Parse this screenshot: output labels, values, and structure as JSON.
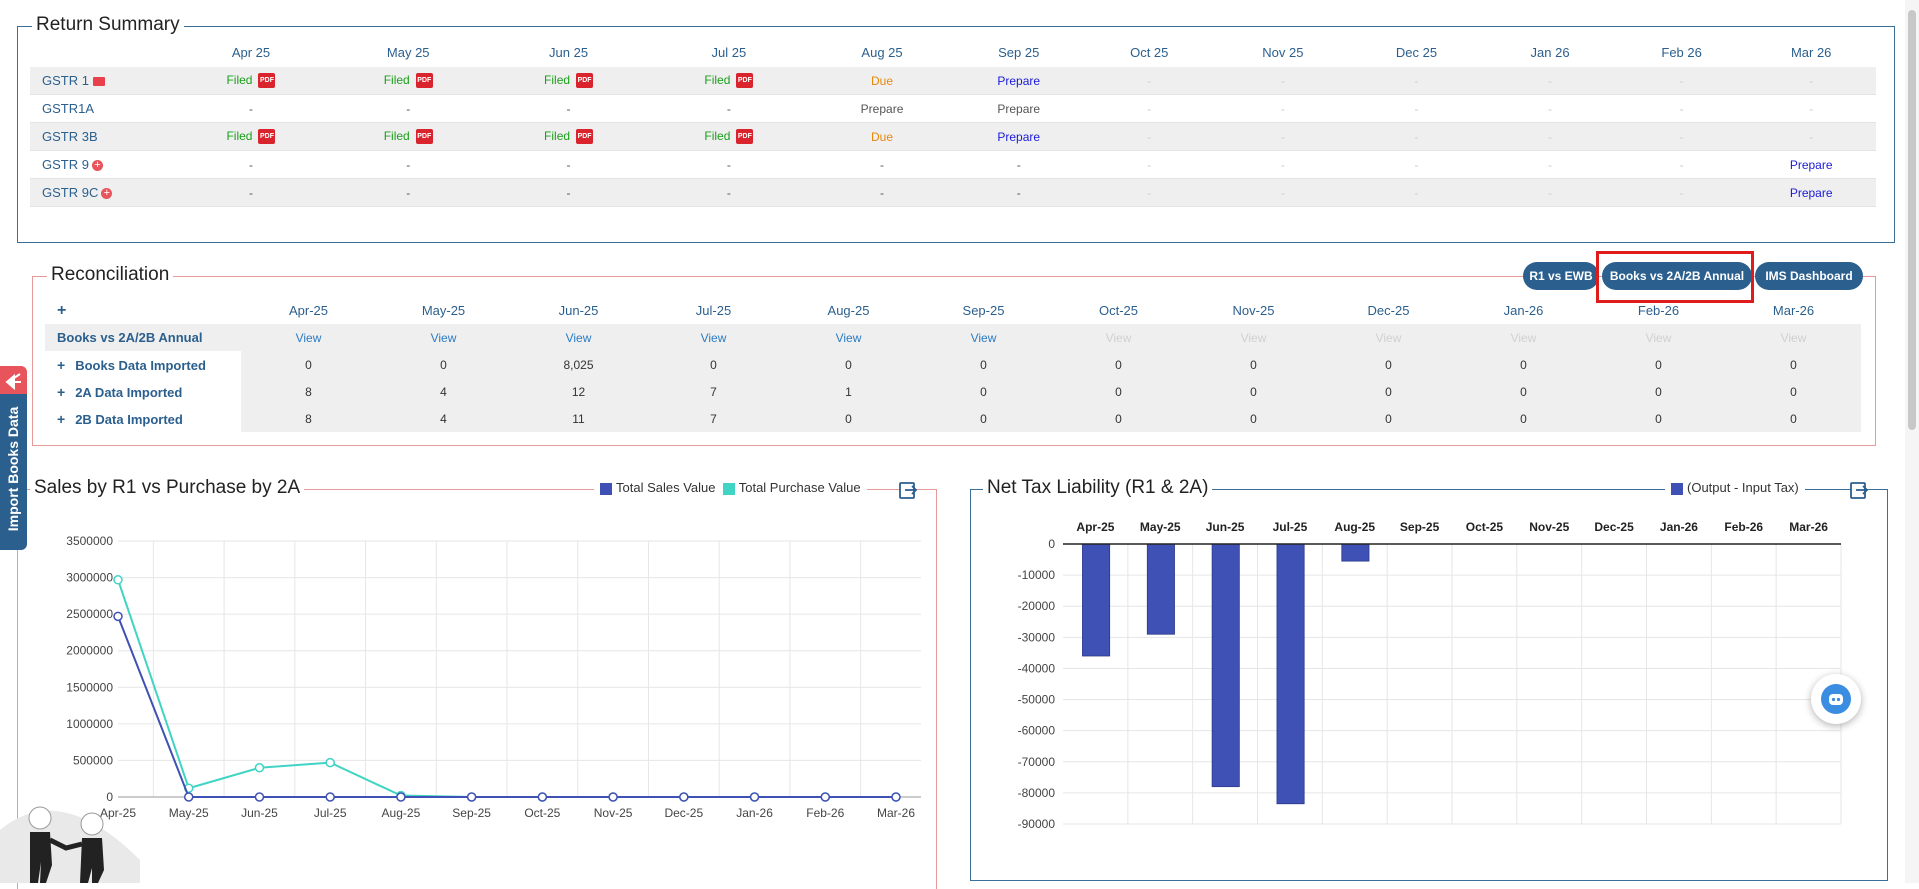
{
  "return_summary": {
    "title": "Return Summary",
    "months": [
      "Apr 25",
      "May 25",
      "Jun 25",
      "Jul 25",
      "Aug 25",
      "Sep 25",
      "Oct 25",
      "Nov 25",
      "Dec 25",
      "Jan 26",
      "Feb 26",
      "Mar 26"
    ],
    "rows": [
      {
        "label": "GSTR 1",
        "icon": "mail-icon",
        "cells": [
          "Filed",
          "Filed",
          "Filed",
          "Filed",
          "Due",
          "Prepare",
          "-",
          "-",
          "-",
          "-",
          "-",
          "-"
        ]
      },
      {
        "label": "GSTR1A",
        "icon": "",
        "cells": [
          "-",
          "-",
          "-",
          "-",
          "Prepare",
          "Prepare",
          "-",
          "-",
          "-",
          "-",
          "-",
          "-"
        ]
      },
      {
        "label": "GSTR 3B",
        "icon": "",
        "cells": [
          "Filed",
          "Filed",
          "Filed",
          "Filed",
          "Due",
          "Prepare",
          "-",
          "-",
          "-",
          "-",
          "-",
          "-"
        ]
      },
      {
        "label": "GSTR 9",
        "icon": "plus-circle-icon",
        "cells": [
          "-",
          "-",
          "-",
          "-",
          "-",
          "-",
          "-",
          "-",
          "-",
          "-",
          "-",
          "Prepare"
        ]
      },
      {
        "label": "GSTR 9C",
        "icon": "plus-circle-icon",
        "cells": [
          "-",
          "-",
          "-",
          "-",
          "-",
          "-",
          "-",
          "-",
          "-",
          "-",
          "-",
          "Prepare"
        ]
      }
    ]
  },
  "reconciliation": {
    "title": "Reconciliation",
    "buttons": [
      "R1 vs EWB",
      "Books vs 2A/2B Annual",
      "IMS Dashboard"
    ],
    "expand_symbol": "+",
    "months": [
      "Apr-25",
      "May-25",
      "Jun-25",
      "Jul-25",
      "Aug-25",
      "Sep-25",
      "Oct-25",
      "Nov-25",
      "Dec-25",
      "Jan-26",
      "Feb-26",
      "Mar-26"
    ],
    "view_row": {
      "label": "Books vs 2A/2B Annual",
      "link_text": "View",
      "active_count": 6
    },
    "rows": [
      {
        "label": "Books Data Imported",
        "values": [
          "0",
          "0",
          "8,025",
          "0",
          "0",
          "0",
          "0",
          "0",
          "0",
          "0",
          "0",
          "0"
        ]
      },
      {
        "label": "2A Data Imported",
        "values": [
          "8",
          "4",
          "12",
          "7",
          "1",
          "0",
          "0",
          "0",
          "0",
          "0",
          "0",
          "0"
        ]
      },
      {
        "label": "2B Data Imported",
        "values": [
          "8",
          "4",
          "11",
          "7",
          "0",
          "0",
          "0",
          "0",
          "0",
          "0",
          "0",
          "0"
        ]
      }
    ]
  },
  "side_tab": {
    "label": "Import Books Data"
  },
  "colors": {
    "sales": "#3f51b5",
    "purchase": "#40d4c4",
    "tax_bar": "#3f51b5",
    "accent": "#2b5f8e",
    "highlight": "#e01b1b"
  },
  "chart_data": [
    {
      "type": "line",
      "title": "Sales by R1 vs Purchase by 2A",
      "categories": [
        "Apr-25",
        "May-25",
        "Jun-25",
        "Jul-25",
        "Aug-25",
        "Sep-25",
        "Oct-25",
        "Nov-25",
        "Dec-25",
        "Jan-26",
        "Feb-26",
        "Mar-26"
      ],
      "ylim": [
        0,
        3500000
      ],
      "yticks": [
        0,
        500000,
        1000000,
        1500000,
        2000000,
        2500000,
        3000000,
        3500000
      ],
      "grid": true,
      "legend": "top-right",
      "series": [
        {
          "name": "Total Sales Value",
          "values": [
            2470000,
            0,
            0,
            0,
            0,
            0,
            0,
            0,
            0,
            0,
            0,
            0
          ]
        },
        {
          "name": "Total Purchase Value",
          "values": [
            2970000,
            120000,
            400000,
            470000,
            20000,
            0,
            0,
            0,
            0,
            0,
            0,
            0
          ]
        }
      ]
    },
    {
      "type": "bar",
      "title": "Net Tax Liability (R1 & 2A)",
      "categories": [
        "Apr-25",
        "May-25",
        "Jun-25",
        "Jul-25",
        "Aug-25",
        "Sep-25",
        "Oct-25",
        "Nov-25",
        "Dec-25",
        "Jan-26",
        "Feb-26",
        "Mar-26"
      ],
      "ylim": [
        -90000,
        0
      ],
      "yticks": [
        0,
        -10000,
        -20000,
        -30000,
        -40000,
        -50000,
        -60000,
        -70000,
        -80000,
        -90000
      ],
      "grid": true,
      "legend": "top-right",
      "series": [
        {
          "name": "(Output - Input Tax)",
          "values": [
            -36000,
            -29000,
            -78000,
            -83500,
            -5500,
            0,
            0,
            0,
            0,
            0,
            0,
            0
          ]
        }
      ]
    }
  ]
}
